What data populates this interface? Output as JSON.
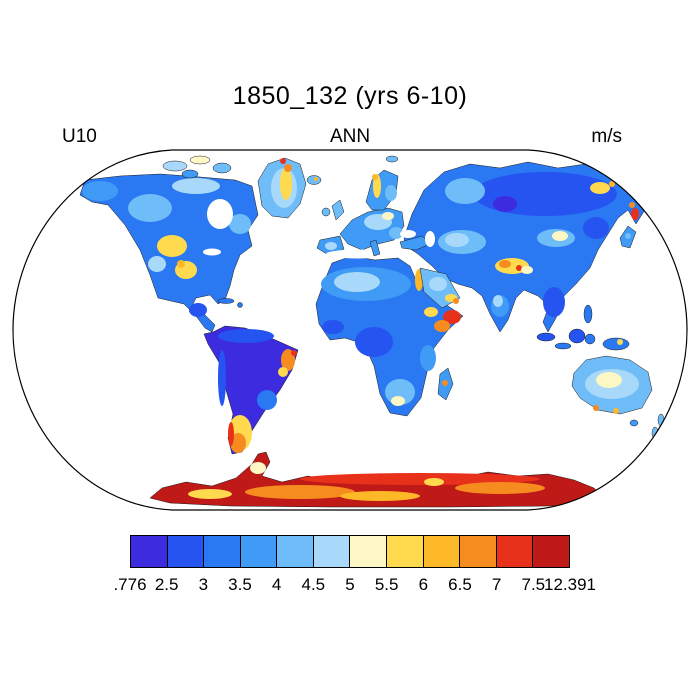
{
  "title": "1850_132 (yrs 6-10)",
  "header": {
    "left": "U10",
    "center": "ANN",
    "right": "m/s"
  },
  "chart_data": {
    "type": "heatmap",
    "title": "1850_132 (yrs 6-10)",
    "variable": "U10",
    "season": "ANN",
    "units": "m/s",
    "projection": "robinson",
    "land_only": true,
    "ocean_masked_white": true,
    "data_min": 0.776,
    "data_max": 12.391,
    "contour_levels": [
      2.5,
      3,
      3.5,
      4,
      4.5,
      5,
      5.5,
      6,
      6.5,
      7,
      7.5
    ],
    "colorbar": {
      "orientation": "horizontal",
      "colors": [
        "#3d2be0",
        "#2554f0",
        "#2b79f2",
        "#3f9bf5",
        "#6fbdf8",
        "#a8d9fb",
        "#fdf6c5",
        "#ffd94e",
        "#fdb827",
        "#f68c1f",
        "#e8311a",
        "#bf1a17"
      ],
      "tick_labels": [
        ".776",
        "2.5",
        "3",
        "3.5",
        "4",
        "4.5",
        "5",
        "5.5",
        "6",
        "6.5",
        "7",
        "7.5",
        "12.391"
      ]
    },
    "map_regions": {
      "north-america": 3,
      "alaska-patch": 4,
      "canada-west-patch": 5,
      "canada-north-patch": 6,
      "canada-plains-patch": 8,
      "quebec-patch": 5,
      "usa-plains-patch": 8,
      "usa-plains-hot-spot": 9,
      "usa-west-patch": 6,
      "mexico-south-patch": 2,
      "arctic-island-1": 6,
      "arctic-island-2": 7,
      "arctic-island-3": 5,
      "arctic-island-4": 4,
      "greenland": 5,
      "greenland-interior-patch": 6,
      "greenland-ridge-patch": 8,
      "greenland-north-spot": 10,
      "greenland-peak-spot": 11,
      "cuba": 3,
      "hispaniola": 3,
      "south-america": 1,
      "sa-north-coast-patch": 2,
      "andes-patch": 2,
      "brazil-coast-spot": 10,
      "brazil-coast-peak-spot": 11,
      "brazil-coast-yellow-spot": 8,
      "brazil-south-patch": 3,
      "patagonia-patch": 8,
      "patagonia-orange-spot": 10,
      "patagonia-west-spot": 11,
      "africa": 3,
      "sahara-patch": 4,
      "sahara-pale-patch": 6,
      "congo-patch": 2,
      "west-africa-patch": 2,
      "horn-of-africa-spot": 11,
      "horn-orange-spot": 10,
      "ethiopia-spot": 8,
      "red-sea-coast-spot": 9,
      "east-africa-patch": 4,
      "southern-africa-patch": 5,
      "south-africa-spot": 7,
      "madagascar": 4,
      "madagascar-spot": 10,
      "iberia": 4,
      "iberia-spot": 6,
      "europe": 4,
      "europe-pale-patch": 6,
      "europe-cream-spot": 7,
      "balkans-patch": 5,
      "italy": 4,
      "scandinavia": 4,
      "norway-ridge-spot": 8,
      "norway-peak-spot": 9,
      "baltic-patch": 5,
      "uk": 5,
      "ireland": 5,
      "iceland": 5,
      "iceland-spot": 9,
      "svalbard": 5,
      "turkey": 4,
      "asia": 3,
      "siberia-patch": 2,
      "siberia-low-spot": 1,
      "west-siberia-patch": 5,
      "yakutia-spot": 8,
      "yakutia-orange-spot": 9,
      "chukotka-spot": 11,
      "kamchatka-spot": 11,
      "kamchatka-orange-spot": 10,
      "central-asia-patch": 5,
      "central-asia-pale-patch": 6,
      "tibet-patch": 8,
      "tibet-orange-spot": 10,
      "tibet-peak-spot": 11,
      "tibet-cream-spot": 7,
      "gobi-patch": 5,
      "gobi-pale-spot": 7,
      "manchuria-patch": 2,
      "se-asia-patch": 2,
      "india-patch": 4,
      "india-pale-spot": 6,
      "arabia": 5,
      "arabia-pale-patch": 6,
      "arabia-yellow-spot": 8,
      "arabia-orange-spot": 10,
      "japan": 4,
      "japan-spot": 5,
      "sumatra": 2,
      "java": 3,
      "borneo": 2,
      "sulawesi": 3,
      "new-guinea": 3,
      "new-guinea-spot": 8,
      "philippines": 3,
      "australia": 5,
      "australia-pale-patch": 6,
      "australia-cream-patch": 7,
      "australia-south-spot": 10,
      "australia-south-amber-spot": 9,
      "tasmania": 4,
      "new-zealand-north": 5,
      "new-zealand-south": 5,
      "new-zealand-spot": 10,
      "antarctica": 12,
      "antarctica-red-band": 11,
      "antarctica-orange-streak-1": 10,
      "antarctica-orange-streak-2": 10,
      "antarctica-yellow-streak": 9,
      "antarctica-yellow-patch": 8,
      "antarctica-cream-spot": 7,
      "antarctica-cream-spot-2": 8
    }
  }
}
